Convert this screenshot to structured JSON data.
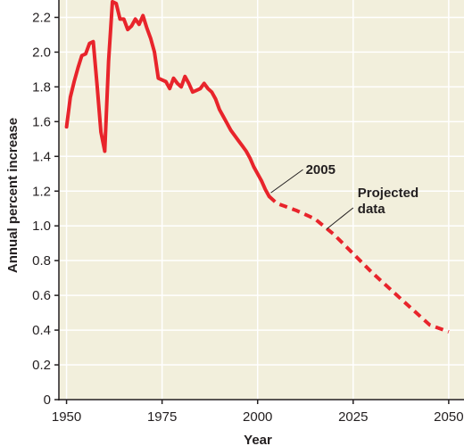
{
  "chart_data": {
    "type": "line",
    "xlabel": "Year",
    "ylabel": "Annual percent increase",
    "xlim": [
      1948,
      2054
    ],
    "ylim": [
      0,
      2.3
    ],
    "x_ticks": [
      1950,
      1975,
      2000,
      2025,
      2050
    ],
    "x_tick_labels": [
      "1950",
      "1975",
      "2000",
      "2025",
      "2050"
    ],
    "y_ticks": [
      0,
      0.2,
      0.4,
      0.6,
      0.8,
      1.0,
      1.2,
      1.4,
      1.6,
      1.8,
      2.0,
      2.2
    ],
    "y_tick_labels": [
      "0",
      "0.2",
      "0.4",
      "0.6",
      "0.8",
      "1.0",
      "1.2",
      "1.4",
      "1.6",
      "1.8",
      "2.0",
      "2.2"
    ],
    "grid": true,
    "colors": {
      "background": "#f2efdc",
      "grid": "#ffffff",
      "line": "#e8242b",
      "axis": "#231f20"
    },
    "series": [
      {
        "style": "solid",
        "x": [
          1950,
          1951,
          1952,
          1953,
          1954,
          1955,
          1956,
          1957,
          1958,
          1959,
          1960,
          1961,
          1962,
          1963,
          1964,
          1965,
          1966,
          1967,
          1968,
          1969,
          1970,
          1971,
          1972,
          1973,
          1974,
          1975,
          1976,
          1977,
          1978,
          1979,
          1980,
          1981,
          1982,
          1983,
          1984,
          1985,
          1986,
          1987,
          1988,
          1989,
          1990,
          1991,
          1992,
          1993,
          1994,
          1995,
          1996,
          1997,
          1998,
          1999,
          2000,
          2001,
          2002,
          2003
        ],
        "y": [
          1.57,
          1.74,
          1.83,
          1.91,
          1.98,
          1.99,
          2.05,
          2.06,
          1.81,
          1.54,
          1.43,
          1.95,
          2.29,
          2.28,
          2.19,
          2.19,
          2.13,
          2.15,
          2.19,
          2.16,
          2.21,
          2.14,
          2.08,
          2.0,
          1.85,
          1.84,
          1.83,
          1.79,
          1.85,
          1.82,
          1.8,
          1.86,
          1.82,
          1.77,
          1.78,
          1.79,
          1.82,
          1.79,
          1.77,
          1.73,
          1.67,
          1.63,
          1.59,
          1.55,
          1.52,
          1.49,
          1.46,
          1.43,
          1.39,
          1.34,
          1.3,
          1.26,
          1.21,
          1.17
        ]
      },
      {
        "name": "Projected data",
        "style": "dashed",
        "x": [
          2003,
          2005,
          2010,
          2015,
          2020,
          2025,
          2030,
          2035,
          2040,
          2045,
          2050
        ],
        "y": [
          1.17,
          1.13,
          1.09,
          1.04,
          0.95,
          0.84,
          0.73,
          0.63,
          0.53,
          0.43,
          0.39
        ]
      }
    ],
    "annotations": [
      {
        "text": "2005",
        "x": 2003,
        "y": 1.17
      },
      {
        "lines": [
          "Projected",
          "data"
        ],
        "x": 2018,
        "y": 0.95
      }
    ]
  }
}
